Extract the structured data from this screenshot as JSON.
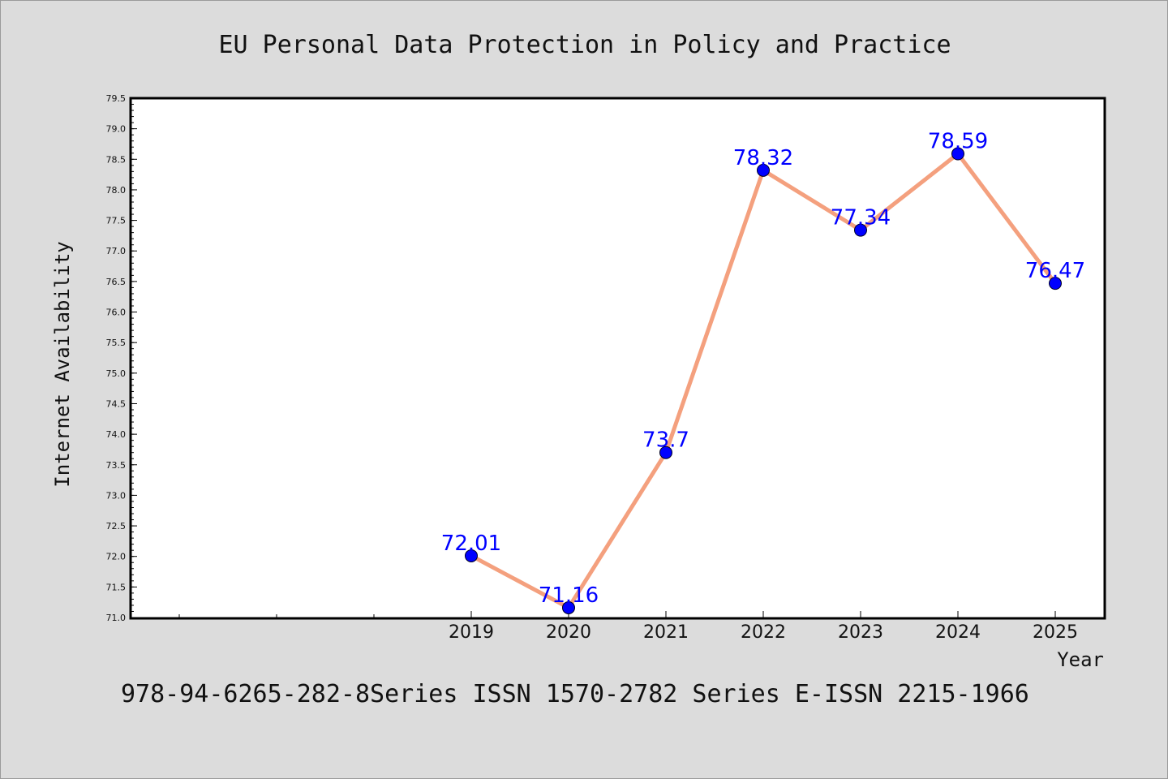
{
  "chart_data": {
    "type": "line",
    "title": "EU Personal Data Protection in Policy and Practice",
    "xlabel": "Year",
    "ylabel": "Internet Availability",
    "footer": "978-94-6265-282-8Series ISSN 1570-2782 Series E-ISSN 2215-1966",
    "x": [
      "2019",
      "2020",
      "2021",
      "2022",
      "2023",
      "2024",
      "2025"
    ],
    "series": [
      {
        "values": [
          72.01,
          71.16,
          73.7,
          78.32,
          77.34,
          78.59,
          76.47
        ],
        "data_labels": [
          "72.01",
          "71.16",
          "73.7",
          "78.32",
          "77.34",
          "78.59",
          "76.47"
        ],
        "line_color": "#f4a07e",
        "marker_color": "#0000ff"
      }
    ],
    "ylim": [
      71.0,
      79.5
    ],
    "yticks": [
      "71.0",
      "71.5",
      "72.0",
      "72.5",
      "73.0",
      "73.5",
      "74.0",
      "74.5",
      "75.0",
      "75.5",
      "76.0",
      "76.5",
      "77.0",
      "77.5",
      "78.0",
      "78.5",
      "79.0",
      "79.5"
    ],
    "grid": false,
    "legend": "none"
  },
  "colors": {
    "background": "#dcdcdc",
    "plot_background": "#ffffff",
    "line": "#f4a07e",
    "marker": "#0000ff",
    "data_label": "#0000ff"
  }
}
